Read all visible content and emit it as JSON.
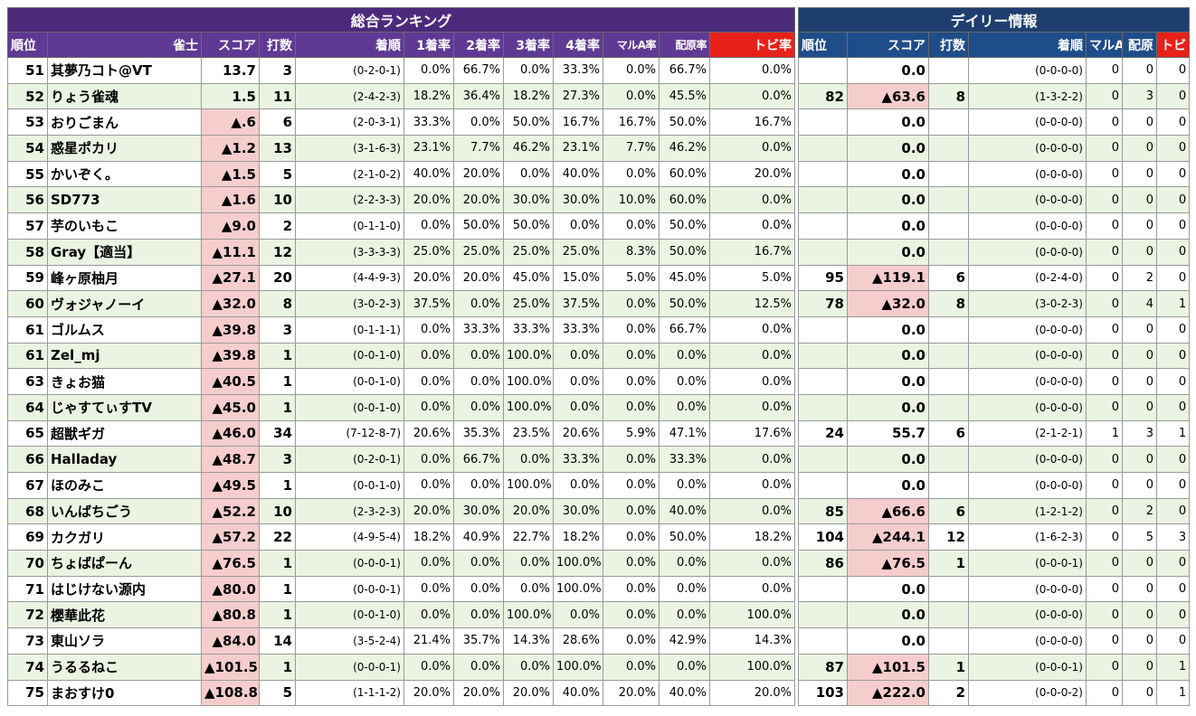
{
  "main_section_title": "総合ランキング",
  "daily_section_title": "デイリー情報",
  "main_headers": [
    "順位",
    "雀士",
    "スコア",
    "打数",
    "着順",
    "1着率",
    "2着率",
    "3着率",
    "4着率",
    "マルA率",
    "配原率",
    "トビ率"
  ],
  "daily_headers": [
    "順位",
    "スコア",
    "打数",
    "着順",
    "マルA",
    "配原",
    "トビ"
  ],
  "rows": [
    {
      "rank": "51",
      "name": "其夢乃コト@VT",
      "score": "13.7",
      "games": "3",
      "order": "(0-2-0-1)",
      "p1": "0.0%",
      "p2": "66.7%",
      "p3": "0.0%",
      "p4": "33.3%",
      "marua": "0.0%",
      "haigen": "66.7%",
      "tobi": "0.0%",
      "d_rank": "",
      "d_score": "0.0",
      "d_games": "",
      "d_order": "(0-0-0-0)",
      "d_marua": "0",
      "d_haigen": "0",
      "d_tobi": "0"
    },
    {
      "rank": "52",
      "name": "りょう雀魂",
      "score": "1.5",
      "games": "11",
      "order": "(2-4-2-3)",
      "p1": "18.2%",
      "p2": "36.4%",
      "p3": "18.2%",
      "p4": "27.3%",
      "marua": "0.0%",
      "haigen": "45.5%",
      "tobi": "0.0%",
      "d_rank": "82",
      "d_score": "▲63.6",
      "d_games": "8",
      "d_order": "(1-3-2-2)",
      "d_marua": "0",
      "d_haigen": "3",
      "d_tobi": "0"
    },
    {
      "rank": "53",
      "name": "おりごまん",
      "score": "▲.6",
      "games": "6",
      "order": "(2-0-3-1)",
      "p1": "33.3%",
      "p2": "0.0%",
      "p3": "50.0%",
      "p4": "16.7%",
      "marua": "16.7%",
      "haigen": "50.0%",
      "tobi": "16.7%",
      "d_rank": "",
      "d_score": "0.0",
      "d_games": "",
      "d_order": "(0-0-0-0)",
      "d_marua": "0",
      "d_haigen": "0",
      "d_tobi": "0"
    },
    {
      "rank": "54",
      "name": "惑星ポカリ",
      "score": "▲1.2",
      "games": "13",
      "order": "(3-1-6-3)",
      "p1": "23.1%",
      "p2": "7.7%",
      "p3": "46.2%",
      "p4": "23.1%",
      "marua": "7.7%",
      "haigen": "46.2%",
      "tobi": "0.0%",
      "d_rank": "",
      "d_score": "0.0",
      "d_games": "",
      "d_order": "(0-0-0-0)",
      "d_marua": "0",
      "d_haigen": "0",
      "d_tobi": "0"
    },
    {
      "rank": "55",
      "name": "かいぞく。",
      "score": "▲1.5",
      "games": "5",
      "order": "(2-1-0-2)",
      "p1": "40.0%",
      "p2": "20.0%",
      "p3": "0.0%",
      "p4": "40.0%",
      "marua": "0.0%",
      "haigen": "60.0%",
      "tobi": "20.0%",
      "d_rank": "",
      "d_score": "0.0",
      "d_games": "",
      "d_order": "(0-0-0-0)",
      "d_marua": "0",
      "d_haigen": "0",
      "d_tobi": "0"
    },
    {
      "rank": "56",
      "name": "SD773",
      "score": "▲1.6",
      "games": "10",
      "order": "(2-2-3-3)",
      "p1": "20.0%",
      "p2": "20.0%",
      "p3": "30.0%",
      "p4": "30.0%",
      "marua": "10.0%",
      "haigen": "60.0%",
      "tobi": "0.0%",
      "d_rank": "",
      "d_score": "0.0",
      "d_games": "",
      "d_order": "(0-0-0-0)",
      "d_marua": "0",
      "d_haigen": "0",
      "d_tobi": "0"
    },
    {
      "rank": "57",
      "name": "芋のいもこ",
      "score": "▲9.0",
      "games": "2",
      "order": "(0-1-1-0)",
      "p1": "0.0%",
      "p2": "50.0%",
      "p3": "50.0%",
      "p4": "0.0%",
      "marua": "0.0%",
      "haigen": "50.0%",
      "tobi": "0.0%",
      "d_rank": "",
      "d_score": "0.0",
      "d_games": "",
      "d_order": "(0-0-0-0)",
      "d_marua": "0",
      "d_haigen": "0",
      "d_tobi": "0"
    },
    {
      "rank": "58",
      "name": "Gray【適当】",
      "score": "▲11.1",
      "games": "12",
      "order": "(3-3-3-3)",
      "p1": "25.0%",
      "p2": "25.0%",
      "p3": "25.0%",
      "p4": "25.0%",
      "marua": "8.3%",
      "haigen": "50.0%",
      "tobi": "16.7%",
      "d_rank": "",
      "d_score": "0.0",
      "d_games": "",
      "d_order": "(0-0-0-0)",
      "d_marua": "0",
      "d_haigen": "0",
      "d_tobi": "0"
    },
    {
      "rank": "59",
      "name": "峰ヶ原柚月",
      "score": "▲27.1",
      "games": "20",
      "order": "(4-4-9-3)",
      "p1": "20.0%",
      "p2": "20.0%",
      "p3": "45.0%",
      "p4": "15.0%",
      "marua": "5.0%",
      "haigen": "45.0%",
      "tobi": "5.0%",
      "d_rank": "95",
      "d_score": "▲119.1",
      "d_games": "6",
      "d_order": "(0-2-4-0)",
      "d_marua": "0",
      "d_haigen": "2",
      "d_tobi": "0"
    },
    {
      "rank": "60",
      "name": "ヴォジャノーイ",
      "score": "▲32.0",
      "games": "8",
      "order": "(3-0-2-3)",
      "p1": "37.5%",
      "p2": "0.0%",
      "p3": "25.0%",
      "p4": "37.5%",
      "marua": "0.0%",
      "haigen": "50.0%",
      "tobi": "12.5%",
      "d_rank": "78",
      "d_score": "▲32.0",
      "d_games": "8",
      "d_order": "(3-0-2-3)",
      "d_marua": "0",
      "d_haigen": "4",
      "d_tobi": "1"
    },
    {
      "rank": "61",
      "name": "ゴルムス",
      "score": "▲39.8",
      "games": "3",
      "order": "(0-1-1-1)",
      "p1": "0.0%",
      "p2": "33.3%",
      "p3": "33.3%",
      "p4": "33.3%",
      "marua": "0.0%",
      "haigen": "66.7%",
      "tobi": "0.0%",
      "d_rank": "",
      "d_score": "0.0",
      "d_games": "",
      "d_order": "(0-0-0-0)",
      "d_marua": "0",
      "d_haigen": "0",
      "d_tobi": "0"
    },
    {
      "rank": "61",
      "name": "Zel_mj",
      "score": "▲39.8",
      "games": "1",
      "order": "(0-0-1-0)",
      "p1": "0.0%",
      "p2": "0.0%",
      "p3": "100.0%",
      "p4": "0.0%",
      "marua": "0.0%",
      "haigen": "0.0%",
      "tobi": "0.0%",
      "d_rank": "",
      "d_score": "0.0",
      "d_games": "",
      "d_order": "(0-0-0-0)",
      "d_marua": "0",
      "d_haigen": "0",
      "d_tobi": "0"
    },
    {
      "rank": "63",
      "name": "きょお猫",
      "score": "▲40.5",
      "games": "1",
      "order": "(0-0-1-0)",
      "p1": "0.0%",
      "p2": "0.0%",
      "p3": "100.0%",
      "p4": "0.0%",
      "marua": "0.0%",
      "haigen": "0.0%",
      "tobi": "0.0%",
      "d_rank": "",
      "d_score": "0.0",
      "d_games": "",
      "d_order": "(0-0-0-0)",
      "d_marua": "0",
      "d_haigen": "0",
      "d_tobi": "0"
    },
    {
      "rank": "64",
      "name": "じゃすてぃすTV",
      "score": "▲45.0",
      "games": "1",
      "order": "(0-0-1-0)",
      "p1": "0.0%",
      "p2": "0.0%",
      "p3": "100.0%",
      "p4": "0.0%",
      "marua": "0.0%",
      "haigen": "0.0%",
      "tobi": "0.0%",
      "d_rank": "",
      "d_score": "0.0",
      "d_games": "",
      "d_order": "(0-0-0-0)",
      "d_marua": "0",
      "d_haigen": "0",
      "d_tobi": "0"
    },
    {
      "rank": "65",
      "name": "超獣ギガ",
      "score": "▲46.0",
      "games": "34",
      "order": "(7-12-8-7)",
      "p1": "20.6%",
      "p2": "35.3%",
      "p3": "23.5%",
      "p4": "20.6%",
      "marua": "5.9%",
      "haigen": "47.1%",
      "tobi": "17.6%",
      "d_rank": "24",
      "d_score": "55.7",
      "d_games": "6",
      "d_order": "(2-1-2-1)",
      "d_marua": "1",
      "d_haigen": "3",
      "d_tobi": "1"
    },
    {
      "rank": "66",
      "name": "Halladay",
      "score": "▲48.7",
      "games": "3",
      "order": "(0-2-0-1)",
      "p1": "0.0%",
      "p2": "66.7%",
      "p3": "0.0%",
      "p4": "33.3%",
      "marua": "0.0%",
      "haigen": "33.3%",
      "tobi": "0.0%",
      "d_rank": "",
      "d_score": "0.0",
      "d_games": "",
      "d_order": "(0-0-0-0)",
      "d_marua": "0",
      "d_haigen": "0",
      "d_tobi": "0"
    },
    {
      "rank": "67",
      "name": "ほのみこ",
      "score": "▲49.5",
      "games": "1",
      "order": "(0-0-1-0)",
      "p1": "0.0%",
      "p2": "0.0%",
      "p3": "100.0%",
      "p4": "0.0%",
      "marua": "0.0%",
      "haigen": "0.0%",
      "tobi": "0.0%",
      "d_rank": "",
      "d_score": "0.0",
      "d_games": "",
      "d_order": "(0-0-0-0)",
      "d_marua": "0",
      "d_haigen": "0",
      "d_tobi": "0"
    },
    {
      "rank": "68",
      "name": "いんばちごう",
      "score": "▲52.2",
      "games": "10",
      "order": "(2-3-2-3)",
      "p1": "20.0%",
      "p2": "30.0%",
      "p3": "20.0%",
      "p4": "30.0%",
      "marua": "0.0%",
      "haigen": "40.0%",
      "tobi": "0.0%",
      "d_rank": "85",
      "d_score": "▲66.6",
      "d_games": "6",
      "d_order": "(1-2-1-2)",
      "d_marua": "0",
      "d_haigen": "2",
      "d_tobi": "0"
    },
    {
      "rank": "69",
      "name": "カクガリ",
      "score": "▲57.2",
      "games": "22",
      "order": "(4-9-5-4)",
      "p1": "18.2%",
      "p2": "40.9%",
      "p3": "22.7%",
      "p4": "18.2%",
      "marua": "0.0%",
      "haigen": "50.0%",
      "tobi": "18.2%",
      "d_rank": "104",
      "d_score": "▲244.1",
      "d_games": "12",
      "d_order": "(1-6-2-3)",
      "d_marua": "0",
      "d_haigen": "5",
      "d_tobi": "3"
    },
    {
      "rank": "70",
      "name": "ちょばぱーん",
      "score": "▲76.5",
      "games": "1",
      "order": "(0-0-0-1)",
      "p1": "0.0%",
      "p2": "0.0%",
      "p3": "0.0%",
      "p4": "100.0%",
      "marua": "0.0%",
      "haigen": "0.0%",
      "tobi": "0.0%",
      "d_rank": "86",
      "d_score": "▲76.5",
      "d_games": "1",
      "d_order": "(0-0-0-1)",
      "d_marua": "0",
      "d_haigen": "0",
      "d_tobi": "0"
    },
    {
      "rank": "71",
      "name": "はじけない源内",
      "score": "▲80.0",
      "games": "1",
      "order": "(0-0-0-1)",
      "p1": "0.0%",
      "p2": "0.0%",
      "p3": "0.0%",
      "p4": "100.0%",
      "marua": "0.0%",
      "haigen": "0.0%",
      "tobi": "0.0%",
      "d_rank": "",
      "d_score": "0.0",
      "d_games": "",
      "d_order": "(0-0-0-0)",
      "d_marua": "0",
      "d_haigen": "0",
      "d_tobi": "0"
    },
    {
      "rank": "72",
      "name": "櫻華此花",
      "score": "▲80.8",
      "games": "1",
      "order": "(0-0-1-0)",
      "p1": "0.0%",
      "p2": "0.0%",
      "p3": "100.0%",
      "p4": "0.0%",
      "marua": "0.0%",
      "haigen": "0.0%",
      "tobi": "100.0%",
      "d_rank": "",
      "d_score": "0.0",
      "d_games": "",
      "d_order": "(0-0-0-0)",
      "d_marua": "0",
      "d_haigen": "0",
      "d_tobi": "0"
    },
    {
      "rank": "73",
      "name": "東山ソラ",
      "score": "▲84.0",
      "games": "14",
      "order": "(3-5-2-4)",
      "p1": "21.4%",
      "p2": "35.7%",
      "p3": "14.3%",
      "p4": "28.6%",
      "marua": "0.0%",
      "haigen": "42.9%",
      "tobi": "14.3%",
      "d_rank": "",
      "d_score": "0.0",
      "d_games": "",
      "d_order": "(0-0-0-0)",
      "d_marua": "0",
      "d_haigen": "0",
      "d_tobi": "0"
    },
    {
      "rank": "74",
      "name": "うるるねこ",
      "score": "▲101.5",
      "games": "1",
      "order": "(0-0-0-1)",
      "p1": "0.0%",
      "p2": "0.0%",
      "p3": "0.0%",
      "p4": "100.0%",
      "marua": "0.0%",
      "haigen": "0.0%",
      "tobi": "100.0%",
      "d_rank": "87",
      "d_score": "▲101.5",
      "d_games": "1",
      "d_order": "(0-0-0-1)",
      "d_marua": "0",
      "d_haigen": "0",
      "d_tobi": "1"
    },
    {
      "rank": "75",
      "name": "まおすけ0",
      "score": "▲108.8",
      "games": "5",
      "order": "(1-1-1-2)",
      "p1": "20.0%",
      "p2": "20.0%",
      "p3": "20.0%",
      "p4": "40.0%",
      "marua": "20.0%",
      "haigen": "40.0%",
      "tobi": "20.0%",
      "d_rank": "103",
      "d_score": "▲222.0",
      "d_games": "2",
      "d_order": "(0-0-0-2)",
      "d_marua": "0",
      "d_haigen": "0",
      "d_tobi": "1"
    }
  ]
}
